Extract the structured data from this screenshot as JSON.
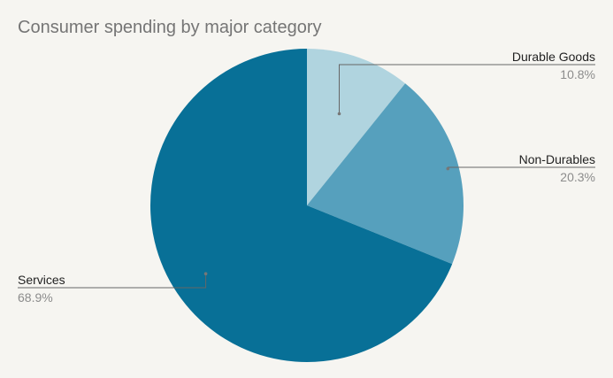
{
  "chart_data": {
    "type": "pie",
    "title": "Consumer spending by major category",
    "slices": [
      {
        "label": "Durable Goods",
        "value": 10.8,
        "display": "10.8%",
        "color": "#b0d4df",
        "label_side": "right"
      },
      {
        "label": "Non-Durables",
        "value": 20.3,
        "display": "20.3%",
        "color": "#56a0bd",
        "label_side": "right"
      },
      {
        "label": "Services",
        "value": 68.9,
        "display": "68.9%",
        "color": "#087097",
        "label_side": "left"
      }
    ],
    "start_angle": "12 o'clock",
    "direction": "clockwise",
    "legend": "none",
    "leader_line_color": "#666666"
  }
}
